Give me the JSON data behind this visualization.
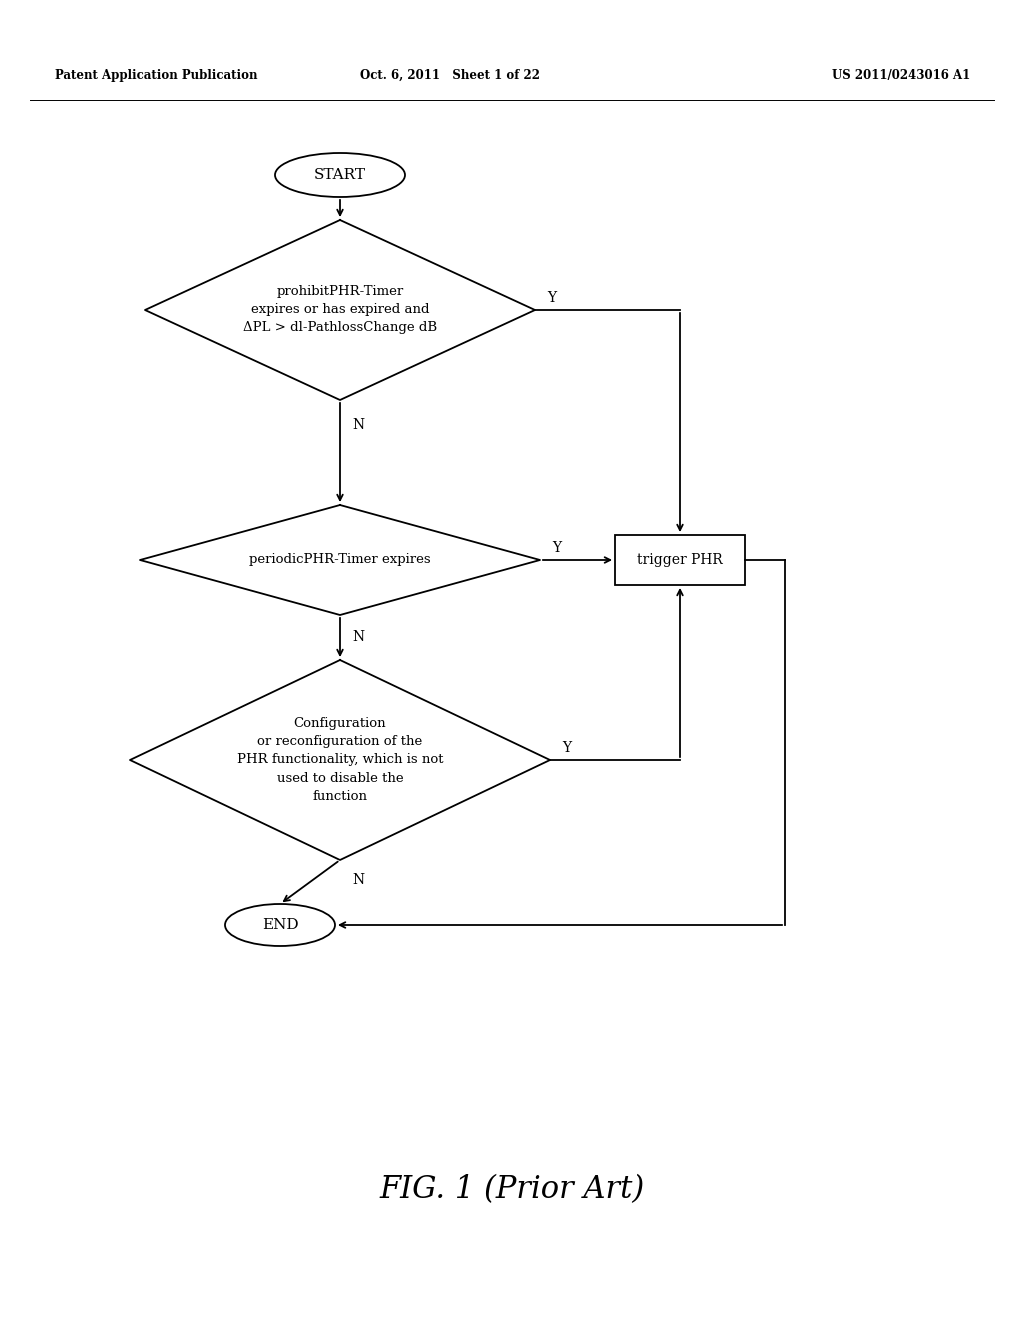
{
  "bg_color": "#ffffff",
  "header_left": "Patent Application Publication",
  "header_center": "Oct. 6, 2011   Sheet 1 of 22",
  "header_right": "US 2011/0243016 A1",
  "footer": "FIG. 1 (Prior Art)",
  "start_label": "START",
  "end_label": "END",
  "diamond1_lines": [
    "prohibitPHR-Timer",
    "expires or has expired and",
    "ΔPL > dl-PathlossChange dB"
  ],
  "diamond2_lines": [
    "periodicPHR-Timer expires"
  ],
  "diamond3_lines": [
    "Configuration",
    "or reconfiguration of the",
    "PHR functionality, which is not",
    "used to disable the",
    "function"
  ],
  "box_label": "trigger PHR",
  "yes_label": "Y",
  "no_label": "N",
  "line_color": "#000000",
  "text_color": "#000000",
  "lw": 1.3,
  "header_fontsize": 8.5,
  "footer_fontsize": 22,
  "label_fontsize": 10,
  "diamond_fontsize": 9.5,
  "oval_fontsize": 11
}
